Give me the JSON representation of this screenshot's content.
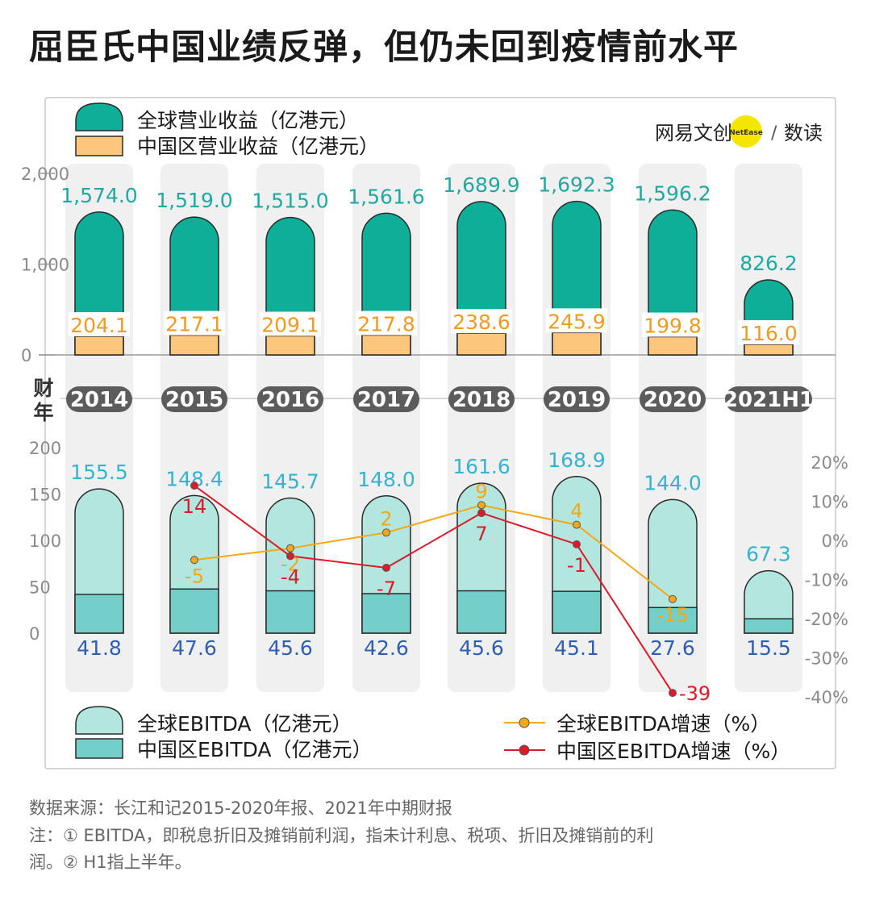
{
  "title": "屈臣氏中国业绩反弹，但仍未回到疫情前水平",
  "brand": {
    "text1": "网易",
    "text2": "文创",
    "badge": "NetEase",
    "divider": "/",
    "text3": "数读"
  },
  "year_axis_label": [
    "财",
    "年"
  ],
  "source": "数据来源：长江和记2015-2020年报、2021年中期财报",
  "note_lines": [
    "注：① EBITDA，即税息折旧及摊销前利润，指未计利息、税项、折旧及摊销前的利",
    "润。② H1指上半年。"
  ],
  "colors": {
    "revenue_global": "#0fae98",
    "revenue_china": "#fcc77c",
    "ebitda_global": "#b2e6df",
    "ebitda_china": "#74cfcb",
    "growth_global": "#f2a818",
    "growth_china": "#dc1b2a",
    "panel_bg": "#f0f0f0",
    "year_pill": "#5c5c5c",
    "value_global": "#1fa9a0",
    "value_china_revenue": "#f09b1e",
    "value_ebitda_global": "#35b3cf",
    "value_ebitda_china": "#2f5fb0"
  },
  "chart_data": [
    {
      "type": "bar",
      "title": "",
      "categories": [
        "2014",
        "2015",
        "2016",
        "2017",
        "2018",
        "2019",
        "2020",
        "2021H1"
      ],
      "y_ticks": [
        "2,000",
        "1,000",
        "0"
      ],
      "ylim": [
        0,
        2000
      ],
      "series": [
        {
          "name": "全球营业收益（亿港元）",
          "values": [
            1574.0,
            1519.0,
            1515.0,
            1561.6,
            1689.9,
            1692.3,
            1596.2,
            826.2
          ],
          "labels": [
            "1,574.0",
            "1,519.0",
            "1,515.0",
            "1,561.6",
            "1,689.9",
            "1,692.3",
            "1,596.2",
            "826.2"
          ]
        },
        {
          "name": "中国区营业收益（亿港元）",
          "values": [
            204.1,
            217.1,
            209.1,
            217.8,
            238.6,
            245.9,
            199.8,
            116.0
          ],
          "labels": [
            "204.1",
            "217.1",
            "209.1",
            "217.8",
            "238.6",
            "245.9",
            "199.8",
            "116.0"
          ]
        }
      ]
    },
    {
      "type": "bar",
      "title": "",
      "categories": [
        "2014",
        "2015",
        "2016",
        "2017",
        "2018",
        "2019",
        "2020",
        "2021H1"
      ],
      "y_ticks": [
        "200",
        "150",
        "100",
        "50",
        "0"
      ],
      "ylim": [
        0,
        200
      ],
      "series": [
        {
          "name": "全球EBITDA（亿港元）",
          "values": [
            155.5,
            148.4,
            145.7,
            148.0,
            161.6,
            168.9,
            144.0,
            67.3
          ],
          "labels": [
            "155.5",
            "148.4",
            "145.7",
            "148.0",
            "161.6",
            "168.9",
            "144.0",
            "67.3"
          ]
        },
        {
          "name": "中国区EBITDA（亿港元）",
          "values": [
            41.8,
            47.6,
            45.6,
            42.6,
            45.6,
            45.1,
            27.6,
            15.5
          ],
          "labels": [
            "41.8",
            "47.6",
            "45.6",
            "42.6",
            "45.6",
            "45.1",
            "27.6",
            "15.5"
          ]
        }
      ]
    },
    {
      "type": "line",
      "title": "",
      "categories": [
        "2015",
        "2016",
        "2017",
        "2018",
        "2019",
        "2020"
      ],
      "y2_ticks": [
        "20%",
        "10%",
        "0%",
        "-10%",
        "-20%",
        "-30%",
        "-40%"
      ],
      "y2lim": [
        -40,
        20
      ],
      "series": [
        {
          "name": "全球EBITDA增速（%）",
          "values": [
            -5,
            -2,
            2,
            9,
            4,
            -15
          ],
          "labels": [
            "-5",
            "-2",
            "2",
            "9",
            "4",
            "-15"
          ]
        },
        {
          "name": "中国区EBITDA增速（%）",
          "values": [
            14,
            -4,
            -7,
            7,
            -1,
            -39
          ],
          "labels": [
            "14",
            "-4",
            "-7",
            "7",
            "-1",
            "-39"
          ]
        }
      ]
    }
  ]
}
